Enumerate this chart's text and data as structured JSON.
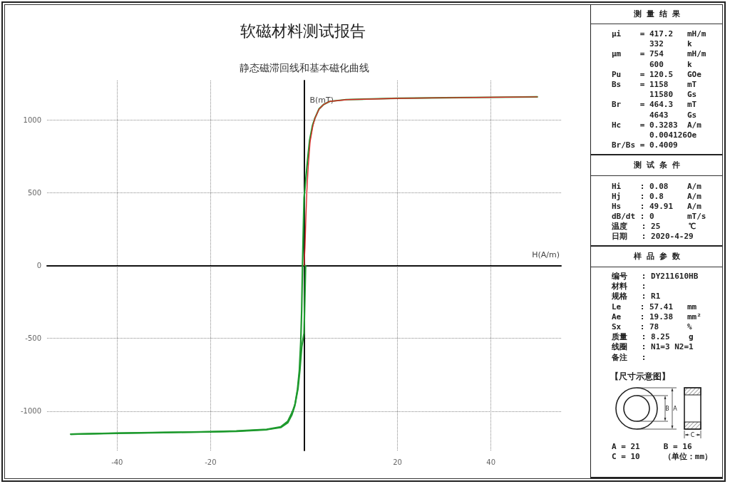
{
  "chart_data": [
    {
      "type": "line",
      "title": "软磁材料测试报告",
      "subtitle": "静态磁滞回线和基本磁化曲线",
      "xlabel": "H(A/m)",
      "ylabel": "B(mT)",
      "xlim": [
        -55,
        55
      ],
      "xticks": [
        -40,
        -20,
        20,
        40
      ],
      "ylim": [
        -1270,
        1270
      ],
      "yticks": [
        -1000,
        -500,
        0,
        500,
        1000
      ],
      "grid": true,
      "marker": "none",
      "line_style": "solid",
      "series": [
        {
          "color": "#1e9a2e",
          "x": [
            49.91,
            40,
            30,
            20,
            14.5,
            9,
            5.5,
            4.2,
            3.2,
            2.3,
            1.8,
            1.2,
            0.8,
            0.4,
            0,
            -0.33,
            -0.5,
            -0.7,
            -1.0,
            -1.4,
            -2.0,
            -2.6,
            -3.5,
            -5,
            -8,
            -14.5,
            -20,
            -30,
            -40,
            -49.91
          ],
          "values": [
            1158,
            1155,
            1152,
            1148,
            1144,
            1139,
            1127,
            1106,
            1075,
            1010,
            960,
            860,
            740,
            600,
            464,
            0,
            -300,
            -520,
            -720,
            -850,
            -965,
            -1025,
            -1080,
            -1112,
            -1127,
            -1138,
            -1142,
            -1147,
            -1152,
            -1158
          ]
        },
        {
          "color": "#1e9a2e",
          "x": [
            -49.91,
            -40,
            -30,
            -20,
            -14.5,
            -8,
            -5,
            -3.5,
            -2.5,
            -1.9,
            -1.3,
            -0.9,
            -0.5,
            0,
            0.33
          ],
          "values": [
            -1158,
            -1150,
            -1146,
            -1141,
            -1136,
            -1125,
            -1108,
            -1070,
            -1005,
            -950,
            -845,
            -720,
            -560,
            -464,
            0
          ]
        },
        {
          "color": "#dc2b2b",
          "x": [
            0,
            0.2,
            0.4,
            0.6,
            0.9,
            1.3,
            1.9,
            2.3,
            3.2,
            4.2,
            5.5,
            9.3,
            14.4,
            20,
            30,
            40,
            49.91
          ],
          "values": [
            0,
            120,
            330,
            510,
            680,
            850,
            960,
            1008,
            1073,
            1106,
            1127,
            1139,
            1143,
            1148,
            1152,
            1155,
            1158
          ]
        }
      ]
    },
    {
      "type": "other",
      "title": "测量结果",
      "annotations": [
        "μi    = 417.2   mH/m",
        "        332     k",
        "μm    = 754     mH/m",
        "        600     k",
        "Pu    = 120.5   GOe",
        "Bs    = 1158    mT",
        "        11580   Gs",
        "Br    = 464.3   mT",
        "        4643    Gs",
        "Hc    = 0.3283  A/m",
        "        0.004126Oe",
        "Br/Bs = 0.4009"
      ]
    },
    {
      "type": "other",
      "title": "测试条件",
      "annotations": [
        "Hi    : 0.08    A/m",
        "Hj    : 0.8     A/m",
        "Hs    : 49.91   A/m",
        "dB/dt : 0       mT/s",
        "温度   : 25      ℃",
        "日期   : 2020-4-29"
      ]
    },
    {
      "type": "other",
      "title": "样品参数",
      "annotations": [
        "编号   : DY211610HB",
        "材料   :",
        "规格   : R1",
        "Le    : 57.41   mm",
        "Ae    : 19.38   mm²",
        "Sx    : 78      %",
        "质量   : 8.25    g",
        "线圈   : N1=3 N2=1",
        "备注   :"
      ]
    },
    {
      "type": "other",
      "title": "【尺寸示意图】",
      "annotations": [
        "B",
        "A",
        "C",
        "A = 21     B = 16",
        "C = 10     （单位：mm）"
      ]
    }
  ]
}
